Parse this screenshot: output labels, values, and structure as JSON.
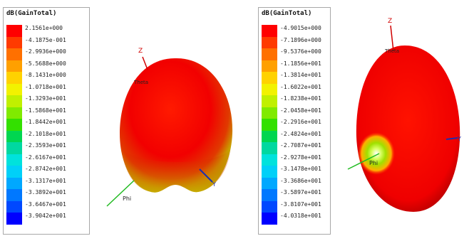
{
  "legends": [
    {
      "title": "dB(GainTotal)",
      "ticks": [
        "2.1561e+000",
        "-4.1875e-001",
        "-2.9936e+000",
        "-5.5688e+000",
        "-8.1431e+000",
        "-1.0718e+001",
        "-1.3293e+001",
        "-1.5868e+001",
        "-1.8442e+001",
        "-2.1018e+001",
        "-2.3593e+001",
        "-2.6167e+001",
        "-2.8742e+001",
        "-3.1317e+001",
        "-3.3892e+001",
        "-3.6467e+001",
        "-3.9042e+001"
      ]
    },
    {
      "title": "dB(GainTotal)",
      "ticks": [
        "-4.9015e+000",
        "-7.1896e+000",
        "-9.5376e+000",
        "-1.1856e+001",
        "-1.3814e+001",
        "-1.6022e+001",
        "-1.8238e+001",
        "-2.0458e+001",
        "-2.2916e+001",
        "-2.4824e+001",
        "-2.7087e+001",
        "-2.9278e+001",
        "-3.1478e+001",
        "-3.3686e+001",
        "-3.5897e+001",
        "-3.8107e+001",
        "-4.0318e+001"
      ]
    }
  ],
  "colors": [
    "#ff0000",
    "#ff3a00",
    "#ff7000",
    "#ffa000",
    "#ffd200",
    "#f2f200",
    "#c0f000",
    "#80ea00",
    "#33e000",
    "#00d650",
    "#00d8a0",
    "#00e2dc",
    "#00d0f8",
    "#00a8ff",
    "#0078ff",
    "#0048ff",
    "#0000ff"
  ],
  "plots": [
    {
      "axis_z": "Z",
      "axis_theta": "Theta",
      "axis_phi": "Phi",
      "axis_y": "Y"
    },
    {
      "axis_z": "Z",
      "axis_theta": "Theta",
      "axis_phi": "Phi",
      "axis_y": "Y"
    }
  ]
}
